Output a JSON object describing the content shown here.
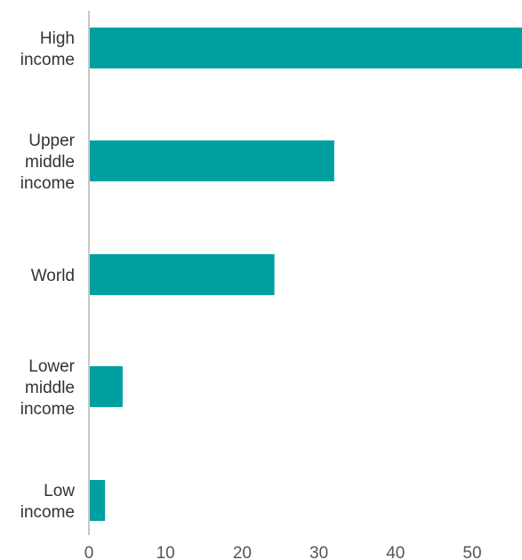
{
  "chart_data": {
    "type": "bar",
    "orientation": "horizontal",
    "categories": [
      [
        "High",
        "income"
      ],
      [
        "Upper",
        "middle",
        "income"
      ],
      [
        "World"
      ],
      [
        "Lower",
        "middle",
        "income"
      ],
      [
        "Low",
        "income"
      ]
    ],
    "values": [
      56.5,
      32,
      24.2,
      4.4,
      2.1
    ],
    "xticks": [
      0,
      10,
      20,
      30,
      40,
      50
    ],
    "xlim": [
      0,
      56.5
    ],
    "grid": false,
    "bar_color": "#00a0a0",
    "axis_color": "#c8c8c8"
  }
}
